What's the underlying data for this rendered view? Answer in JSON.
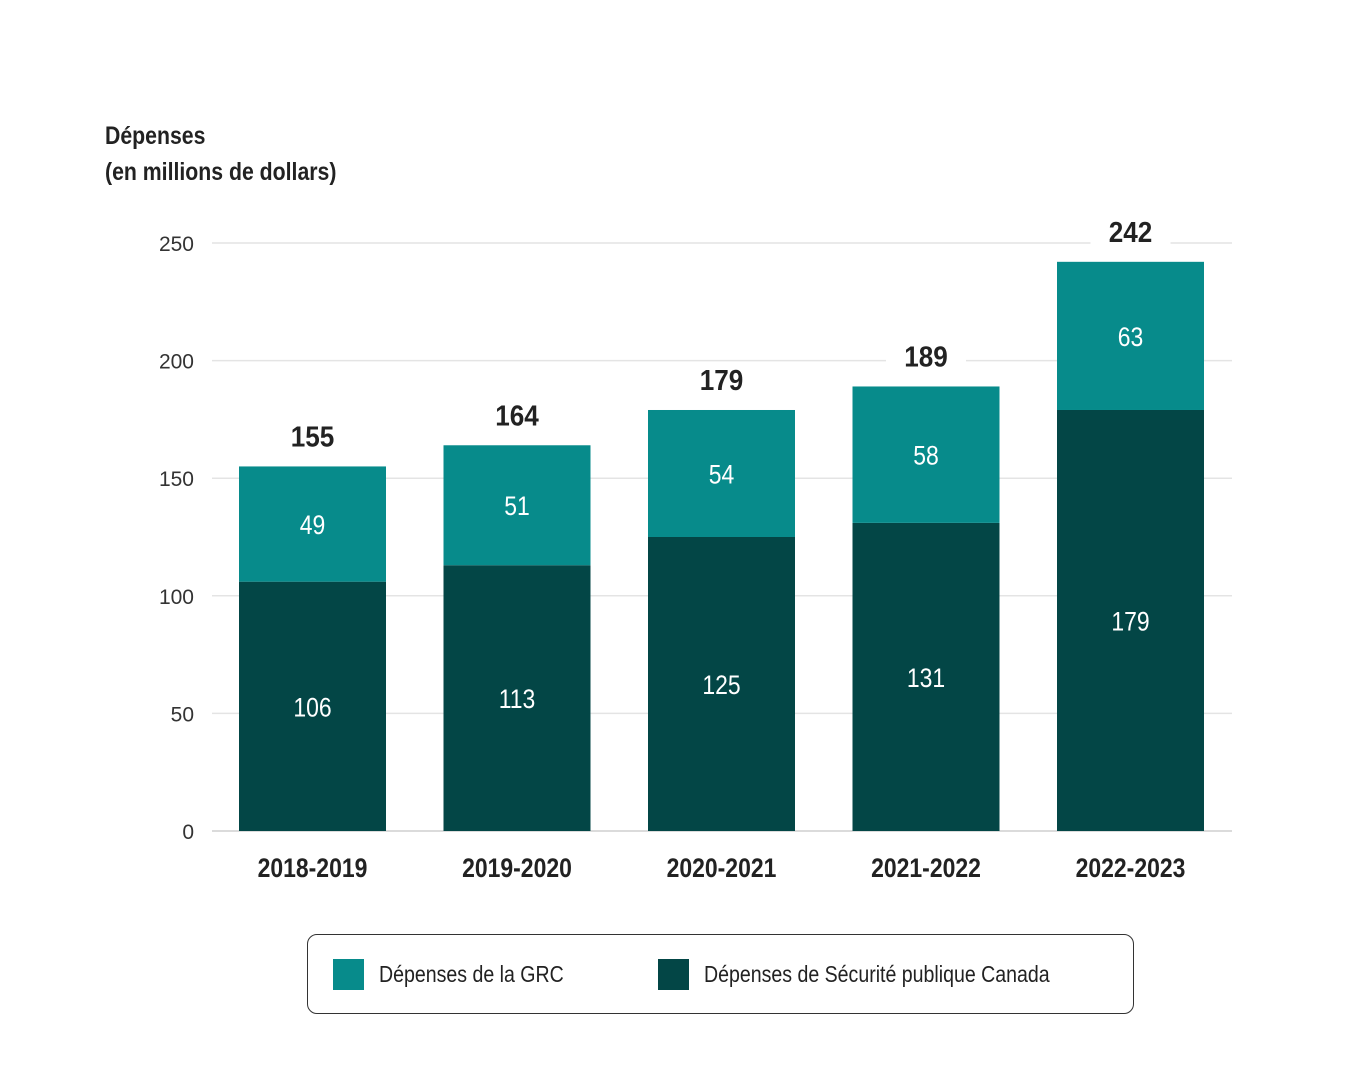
{
  "chart_data": {
    "type": "bar",
    "stacked": true,
    "ylabel": "Dépenses",
    "ylabel_sub": "(en millions de dollars)",
    "categories": [
      "2018-2019",
      "2019-2020",
      "2020-2021",
      "2021-2022",
      "2022-2023"
    ],
    "series": [
      {
        "name": "Dépenses de Sécurité publique Canada",
        "values": [
          106,
          113,
          125,
          131,
          179
        ],
        "color": "#034646"
      },
      {
        "name": "Dépenses de la GRC",
        "values": [
          49,
          51,
          54,
          58,
          63
        ],
        "color": "#078b8b"
      }
    ],
    "totals": [
      155,
      164,
      179,
      189,
      242
    ],
    "ylim": [
      0,
      250
    ],
    "yticks": [
      0,
      50,
      100,
      150,
      200,
      250
    ],
    "grid": true,
    "legend_position": "bottom",
    "legend_order": [
      "Dépenses de la GRC",
      "Dépenses de Sécurité publique Canada"
    ]
  }
}
